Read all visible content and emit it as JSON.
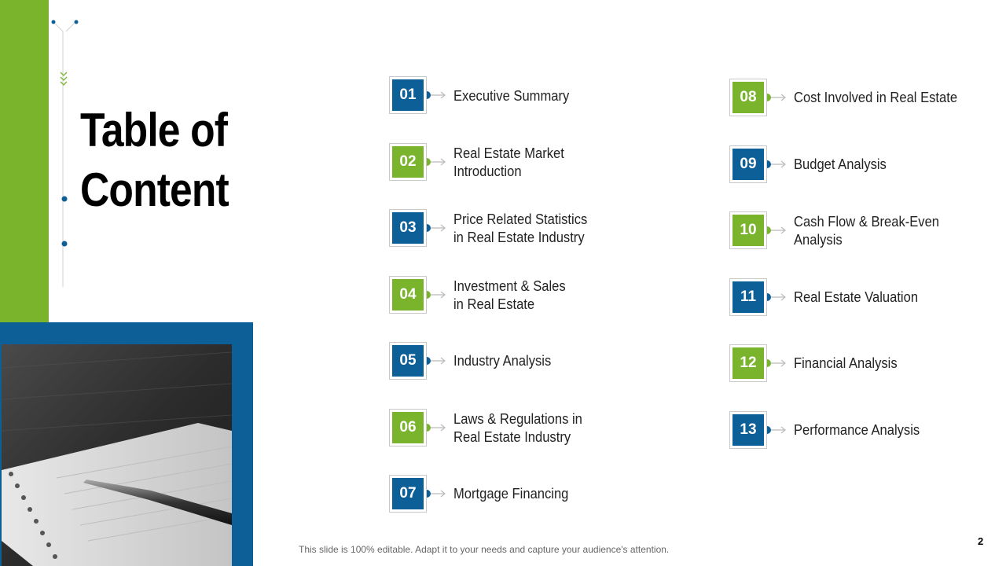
{
  "title_lines": [
    "Table of",
    "Content"
  ],
  "items": [
    {
      "num": "01",
      "label_lines": [
        "Executive Summary"
      ]
    },
    {
      "num": "02",
      "label_lines": [
        "Real Estate Market",
        "Introduction"
      ]
    },
    {
      "num": "03",
      "label_lines": [
        "Price Related Statistics",
        "in Real Estate Industry"
      ]
    },
    {
      "num": "04",
      "label_lines": [
        "Investment & Sales",
        "in Real Estate"
      ]
    },
    {
      "num": "05",
      "label_lines": [
        "Industry Analysis"
      ]
    },
    {
      "num": "06",
      "label_lines": [
        "Laws & Regulations in",
        "Real Estate Industry"
      ]
    },
    {
      "num": "07",
      "label_lines": [
        "Mortgage Financing"
      ]
    },
    {
      "num": "08",
      "label_lines": [
        "Cost Involved in Real Estate"
      ]
    },
    {
      "num": "09",
      "label_lines": [
        "Budget Analysis"
      ]
    },
    {
      "num": "10",
      "label_lines": [
        "Cash Flow & Break-Even",
        "Analysis"
      ]
    },
    {
      "num": "11",
      "label_lines": [
        "Real Estate Valuation"
      ]
    },
    {
      "num": "12",
      "label_lines": [
        "Financial Analysis"
      ]
    },
    {
      "num": "13",
      "label_lines": [
        "Performance Analysis"
      ]
    }
  ],
  "footer_text": "This slide is 100% editable. Adapt it to your needs and capture your audience's attention.",
  "page_number": "2",
  "colors": {
    "blue": "#0d5f97",
    "green": "#7ab42c"
  },
  "icons": {
    "connector": "arrow-connector-icon",
    "decoration": "circuit-line-decoration",
    "photo": "notebook-pen-photo"
  }
}
